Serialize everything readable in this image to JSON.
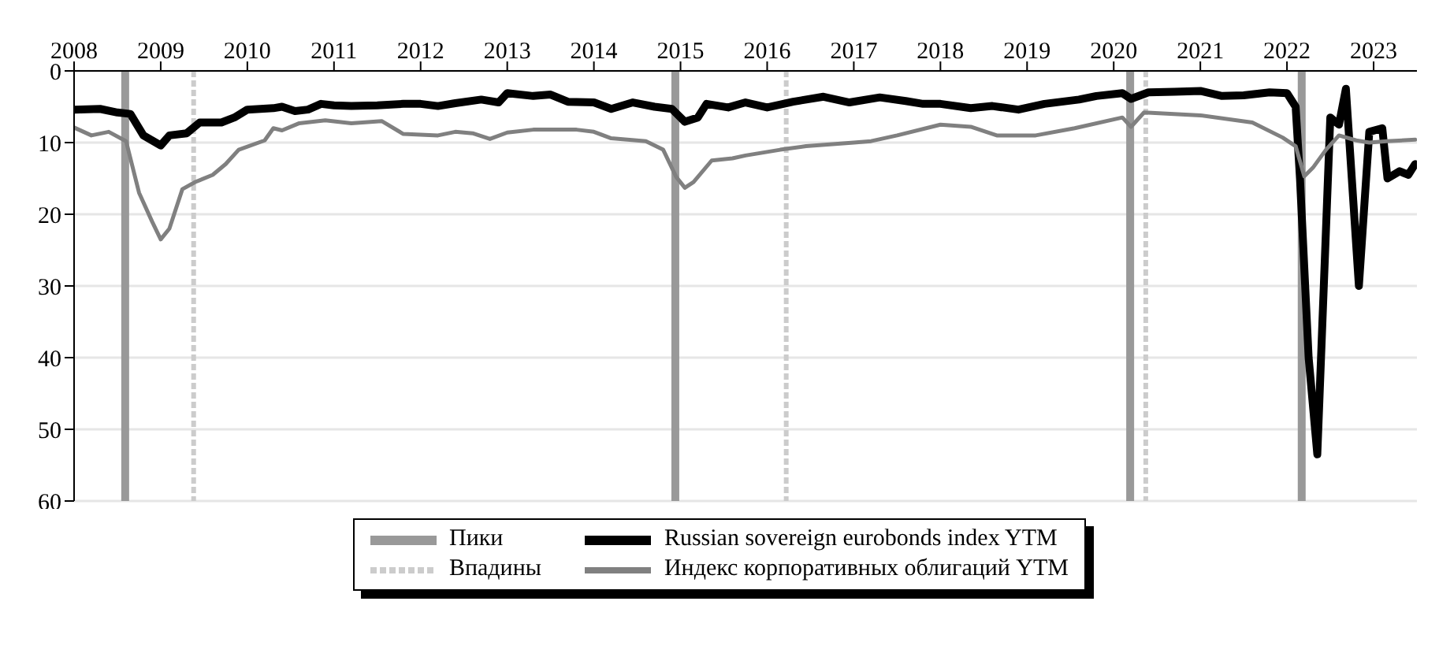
{
  "chart_data": {
    "type": "line",
    "ylim": [
      60,
      0
    ],
    "yticks": [
      0,
      10,
      20,
      30,
      40,
      50,
      60
    ],
    "xlim": [
      2008,
      2023.5
    ],
    "xticks": [
      {
        "value": 2008,
        "label": "2008"
      },
      {
        "value": 2009,
        "label": "2009"
      },
      {
        "value": 2010,
        "label": "2010"
      },
      {
        "value": 2011,
        "label": "2011"
      },
      {
        "value": 2012,
        "label": "2012"
      },
      {
        "value": 2013,
        "label": "2013"
      },
      {
        "value": 2014,
        "label": "2014"
      },
      {
        "value": 2015,
        "label": "2015"
      },
      {
        "value": 2016,
        "label": "2016"
      },
      {
        "value": 2017,
        "label": "2017"
      },
      {
        "value": 2018,
        "label": "2018"
      },
      {
        "value": 2019,
        "label": "2019"
      },
      {
        "value": 2020,
        "label": "2020"
      },
      {
        "value": 2021,
        "label": "2021"
      },
      {
        "value": 2022,
        "label": "2022"
      },
      {
        "value": 2023,
        "label": "2023"
      }
    ],
    "grid": "y",
    "legend": "bottom",
    "line_style": "solid",
    "marker": "none",
    "series": [
      {
        "name": "Russian sovereign eurobonds index YTM",
        "color": "#000000",
        "x": [
          2008,
          2008.3,
          2008.5,
          2008.65,
          2008.8,
          2009,
          2009.1,
          2009.3,
          2009.45,
          2009.7,
          2009.85,
          2010,
          2010.3,
          2010.4,
          2010.55,
          2010.7,
          2010.85,
          2011,
          2011.2,
          2011.5,
          2011.8,
          2012,
          2012.2,
          2012.4,
          2012.7,
          2012.9,
          2013,
          2013.3,
          2013.5,
          2013.7,
          2014,
          2014.2,
          2014.45,
          2014.7,
          2014.9,
          2015.05,
          2015.2,
          2015.3,
          2015.55,
          2015.75,
          2016,
          2016.3,
          2016.65,
          2016.95,
          2017.3,
          2017.6,
          2017.8,
          2018,
          2018.35,
          2018.6,
          2018.9,
          2019.2,
          2019.6,
          2019.8,
          2020.1,
          2020.2,
          2020.4,
          2020.7,
          2021,
          2021.25,
          2021.5,
          2021.8,
          2022,
          2022.1,
          2022.15,
          2022.25,
          2022.35,
          2022.5,
          2022.6,
          2022.68,
          2022.83,
          2022.95,
          2023.1,
          2023.16,
          2023.3,
          2023.4,
          2023.48
        ],
        "values": [
          5.4,
          5.3,
          5.8,
          6,
          9,
          10.4,
          9,
          8.7,
          7.2,
          7.2,
          6.5,
          5.4,
          5.2,
          5,
          5.6,
          5.4,
          4.6,
          4.8,
          4.9,
          4.8,
          4.6,
          4.6,
          4.9,
          4.5,
          4,
          4.4,
          3.1,
          3.5,
          3.3,
          4.3,
          4.4,
          5.3,
          4.4,
          5,
          5.3,
          7.1,
          6.5,
          4.6,
          5.1,
          4.4,
          5.1,
          4.3,
          3.6,
          4.4,
          3.7,
          4.2,
          4.6,
          4.6,
          5.2,
          4.9,
          5.4,
          4.6,
          4,
          3.5,
          3.1,
          3.9,
          3,
          2.9,
          2.8,
          3.5,
          3.4,
          3,
          3.1,
          5,
          15,
          40,
          53.5,
          6.5,
          7.5,
          2.5,
          30,
          8.5,
          8,
          15,
          14,
          14.5,
          13
        ]
      },
      {
        "name": "Индекс корпоративных облигаций YTM",
        "color": "#808080",
        "x": [
          2008,
          2008.2,
          2008.4,
          2008.6,
          2008.75,
          2008.9,
          2009,
          2009.1,
          2009.25,
          2009.4,
          2009.6,
          2009.75,
          2009.9,
          2010.2,
          2010.3,
          2010.4,
          2010.6,
          2010.9,
          2011.2,
          2011.55,
          2011.8,
          2012.2,
          2012.4,
          2012.6,
          2012.8,
          2013,
          2013.3,
          2013.8,
          2014,
          2014.2,
          2014.6,
          2014.8,
          2014.95,
          2015.05,
          2015.15,
          2015.36,
          2015.6,
          2015.75,
          2016.15,
          2016.45,
          2017,
          2017.2,
          2017.5,
          2018,
          2018.35,
          2018.65,
          2019.1,
          2019.55,
          2020.1,
          2020.2,
          2020.35,
          2021,
          2021.6,
          2021.95,
          2022.1,
          2022.2,
          2022.3,
          2022.45,
          2022.6,
          2022.8,
          2022.95,
          2023.15,
          2023.48
        ],
        "values": [
          7.9,
          9,
          8.5,
          9.8,
          17,
          21,
          23.5,
          22,
          16.5,
          15.5,
          14.5,
          13,
          11,
          9.7,
          8,
          8.3,
          7.3,
          6.9,
          7.3,
          7,
          8.8,
          9,
          8.5,
          8.7,
          9.5,
          8.6,
          8.2,
          8.2,
          8.5,
          9.4,
          9.8,
          11,
          14.8,
          16.3,
          15.5,
          12.5,
          12.2,
          11.8,
          11,
          10.5,
          10,
          9.8,
          9,
          7.5,
          7.8,
          9,
          9,
          8,
          6.5,
          7.8,
          5.8,
          6.2,
          7.2,
          9.3,
          10.5,
          14.7,
          13.5,
          11,
          9,
          9.7,
          10,
          9.8,
          9.6
        ]
      }
    ],
    "ref_lines": [
      {
        "axis": "x",
        "value": 2008.59,
        "label": "Пики",
        "color": "#999999",
        "line_style": "solid"
      },
      {
        "axis": "x",
        "value": 2009.38,
        "label": "Впадины",
        "color": "#cccccc",
        "line_style": "dashed"
      },
      {
        "axis": "x",
        "value": 2014.94,
        "color": "#999999",
        "line_style": "solid"
      },
      {
        "axis": "x",
        "value": 2016.22,
        "color": "#cccccc",
        "line_style": "dashed"
      },
      {
        "axis": "x",
        "value": 2020.19,
        "color": "#999999",
        "line_style": "solid"
      },
      {
        "axis": "x",
        "value": 2020.37,
        "color": "#cccccc",
        "line_style": "dashed"
      },
      {
        "axis": "x",
        "value": 2022.17,
        "color": "#999999",
        "line_style": "solid"
      }
    ]
  }
}
